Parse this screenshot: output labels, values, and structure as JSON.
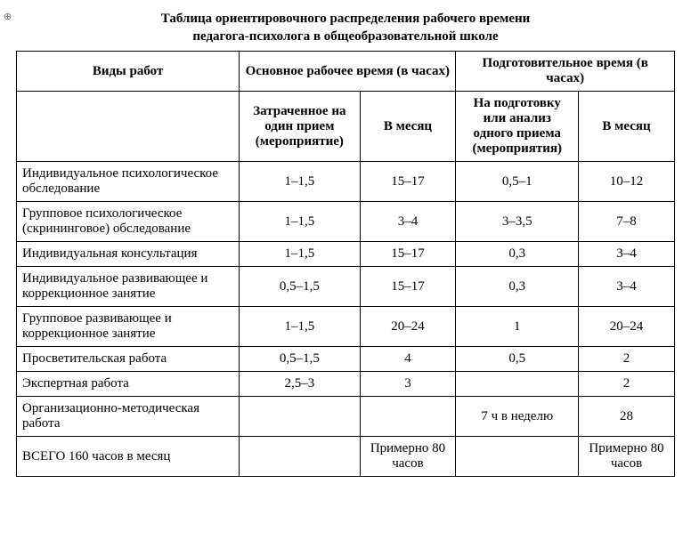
{
  "title_line1": "Таблица ориентировочного распределения рабочего времени",
  "title_line2": "педагога-психолога в общеобразовательной школе",
  "headers": {
    "col_work": "Виды работ",
    "group_main": "Основное рабочее время (в часах)",
    "group_prep": "Подготовительное время (в часах)",
    "sub_main_spent": "Затраченное на один прием (мероприятие)",
    "sub_main_month": "В месяц",
    "sub_prep_spent": "На подготовку или анализ одного приема (мероприятия)",
    "sub_prep_month": "В месяц"
  },
  "rows": [
    {
      "label": "Индивидуальное психологическое обследование",
      "c1": "1–1,5",
      "c2": "15–17",
      "c3": "0,5–1",
      "c4": "10–12"
    },
    {
      "label": "Групповое психологическое (скрининговое) обследование",
      "c1": "1–1,5",
      "c2": "3–4",
      "c3": "3–3,5",
      "c4": "7–8"
    },
    {
      "label": "Индивидуальная консультация",
      "c1": "1–1,5",
      "c2": "15–17",
      "c3": "0,3",
      "c4": "3–4"
    },
    {
      "label": "Индивидуальное развивающее и коррекционное занятие",
      "c1": "0,5–1,5",
      "c2": "15–17",
      "c3": "0,3",
      "c4": "3–4"
    },
    {
      "label": "Групповое развивающее и коррекционное занятие",
      "c1": "1–1,5",
      "c2": "20–24",
      "c3": "1",
      "c4": "20–24"
    },
    {
      "label": "Просветительская работа",
      "c1": "0,5–1,5",
      "c2": "4",
      "c3": "0,5",
      "c4": "2"
    },
    {
      "label": "Экспертная работа",
      "c1": "2,5–3",
      "c2": "3",
      "c3": "",
      "c4": "2"
    },
    {
      "label": "Организационно-методическая работа",
      "c1": "",
      "c2": "",
      "c3": "7 ч в неделю",
      "c4": "28"
    },
    {
      "label": "ВСЕГО 160 часов в месяц",
      "c1": "",
      "c2": "Примерно 80 часов",
      "c3": "",
      "c4": "Примерно 80 часов"
    }
  ]
}
